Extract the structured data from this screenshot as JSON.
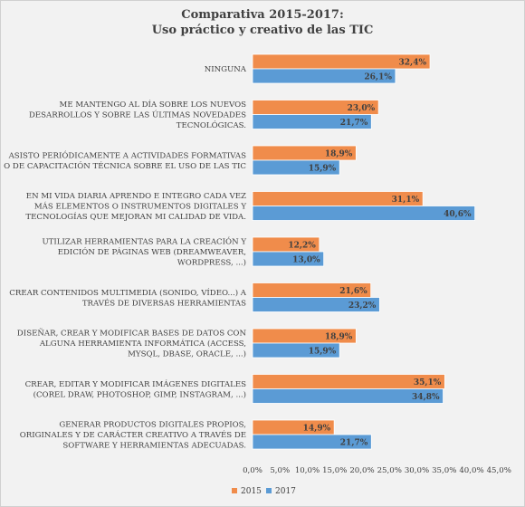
{
  "colors": {
    "s2015": "#f08c4b",
    "s2017": "#5b9bd5",
    "highlight": "#c00000"
  },
  "chart_data": {
    "type": "bar",
    "orientation": "horizontal",
    "title": [
      "Comparativa 2015-2017:",
      "Uso práctico y creativo de las TIC"
    ],
    "xlim": [
      0,
      45
    ],
    "ticks": [
      "0,0%",
      "5,0%",
      "10,0%",
      "15,0%",
      "20,0%",
      "25,0%",
      "30,0%",
      "35,0%",
      "40,0%",
      "45,0%"
    ],
    "grid": false,
    "legend_position": "bottom",
    "categories": [
      [
        "NINGUNA"
      ],
      [
        "ME MANTENGO AL DÍA SOBRE LOS NUEVOS",
        "DESARROLLOS Y SOBRE LAS ÚLTIMAS NOVEDADES",
        "TECNOLÓGICAS."
      ],
      [
        "ASISTO PERIÓDICAMENTE A ACTIVIDADES FORMATIVAS",
        "O DE CAPACITACIÓN TÉCNICA SOBRE EL USO DE LAS TIC"
      ],
      [
        "EN MI VIDA DIARIA APRENDO E INTEGRO CADA VEZ",
        "MÁS ELEMENTOS O INSTRUMENTOS DIGITALES Y",
        "TECNOLOGÍAS QUE MEJORAN MI CALIDAD DE VIDA."
      ],
      [
        "UTILIZAR HERRAMIENTAS PARA LA CREACIÓN Y",
        "EDICIÓN DE PÁGINAS WEB (DREAMWEAVER,",
        "WORDPRESS, ...)"
      ],
      [
        "CREAR CONTENIDOS MULTIMEDIA (SONIDO, VÍDEO...) A",
        "TRAVÉS DE DIVERSAS HERRAMIENTAS"
      ],
      [
        "DISEÑAR, CREAR Y MODIFICAR BASES DE DATOS CON",
        "ALGUNA HERRAMIENTA INFORMÁTICA (ACCESS,",
        "MYSQL, DBASE, ORACLE, ...)"
      ],
      [
        "CREAR, EDITAR Y MODIFICAR IMÁGENES DIGITALES",
        "(COREL DRAW, PHOTOSHOP, GIMP, INSTAGRAM, ...)"
      ],
      [
        "GENERAR PRODUCTOS DIGITALES PROPIOS,",
        "ORIGINALES Y DE CARÁCTER CREATIVO A TRAVÉS DE",
        "SOFTWARE Y HERRAMIENTAS ADECUADAS."
      ]
    ],
    "series": [
      {
        "name": "2015",
        "values": [
          32.4,
          23.0,
          18.9,
          31.1,
          12.2,
          21.6,
          18.9,
          35.1,
          14.9
        ],
        "labels": [
          "32,4%",
          "23,0%",
          "18,9%",
          "31,1%",
          "12,2%",
          "21,6%",
          "18,9%",
          "35,1%",
          "14,9%"
        ]
      },
      {
        "name": "2017",
        "values": [
          26.1,
          21.7,
          15.9,
          40.6,
          13.0,
          23.2,
          15.9,
          34.8,
          21.7
        ],
        "labels": [
          "26,1%",
          "21,7%",
          "15,9%",
          "40,6%",
          "13,0%",
          "23,2%",
          "15,9%",
          "34,8%",
          "21,7%"
        ]
      }
    ],
    "highlighted_label": {
      "series": 1,
      "index": 3
    }
  }
}
